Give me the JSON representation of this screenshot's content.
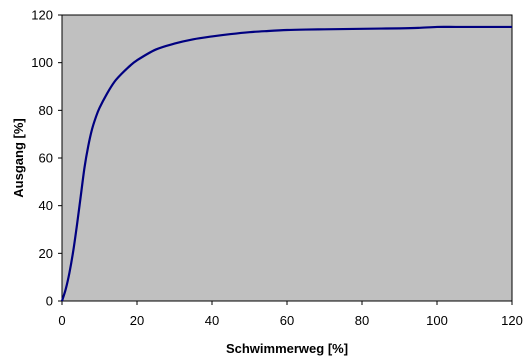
{
  "chart_data": {
    "type": "line",
    "title": "",
    "xlabel": "Schwimmerweg [%]",
    "ylabel": "Ausgang [%]",
    "xlim": [
      0,
      120
    ],
    "ylim": [
      0,
      120
    ],
    "xticks": [
      0,
      20,
      40,
      60,
      80,
      100,
      120
    ],
    "yticks": [
      0,
      20,
      40,
      60,
      80,
      100,
      120
    ],
    "grid": false,
    "legend": "none",
    "plot_background": "#c0c0c0",
    "series": [
      {
        "color": "#000080",
        "x": [
          0,
          1,
          2,
          3,
          4,
          5,
          6,
          7,
          8,
          9,
          10,
          12,
          14,
          16,
          18,
          20,
          25,
          30,
          35,
          40,
          45,
          50,
          55,
          60,
          65,
          70,
          75,
          80,
          85,
          90,
          95,
          100,
          105,
          110,
          115,
          120
        ],
        "y": [
          0,
          5,
          12,
          21,
          32,
          44,
          56,
          65,
          72,
          77,
          81,
          87,
          92,
          95.5,
          98.5,
          101,
          105.5,
          108,
          109.8,
          111,
          112,
          112.8,
          113.3,
          113.7,
          113.9,
          114,
          114.1,
          114.2,
          114.3,
          114.4,
          114.6,
          115,
          115,
          115,
          115,
          115
        ]
      }
    ]
  }
}
